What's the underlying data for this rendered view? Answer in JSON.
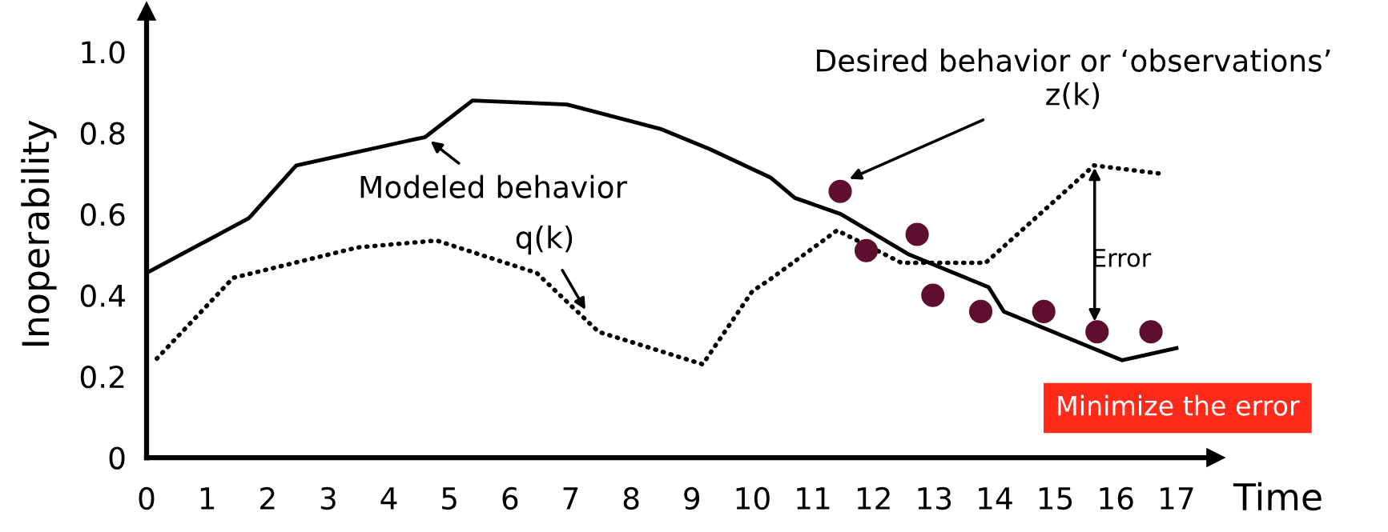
{
  "chart_data": {
    "type": "line",
    "xlabel": "Time",
    "ylabel": "Inoperability",
    "xlim": [
      0,
      17.65
    ],
    "ylim": [
      0,
      1.1
    ],
    "xticks": [
      0,
      1,
      2,
      3,
      4,
      5,
      6,
      7,
      8,
      9,
      10,
      11,
      12,
      13,
      14,
      15,
      16,
      17
    ],
    "yticks": [
      0,
      0.2,
      0.4,
      0.6,
      0.8,
      {
        "value": 1,
        "label": "1.0"
      }
    ],
    "grid": false,
    "legend": false,
    "series": [
      {
        "line_style": "solid",
        "color": "#000000",
        "x": [
          0,
          1.69,
          2.47,
          4.6,
          5.38,
          6.94,
          8.48,
          9.3,
          10.3,
          10.7,
          11.46,
          12.59,
          13.9,
          14.15,
          16.1,
          17.0
        ],
        "values": [
          0.455,
          0.59,
          0.72,
          0.79,
          0.88,
          0.87,
          0.81,
          0.76,
          0.69,
          0.64,
          0.6,
          0.5,
          0.42,
          0.36,
          0.24,
          0.27
        ]
      },
      {
        "line_style": "dotted",
        "color": "#000000",
        "x": [
          0.17,
          1.43,
          3.49,
          4.79,
          6.44,
          7.46,
          9.18,
          10.0,
          10.3,
          11.4,
          12.46,
          13.85,
          15.64,
          16.72
        ],
        "values": [
          0.244,
          0.443,
          0.518,
          0.535,
          0.455,
          0.31,
          0.23,
          0.41,
          0.44,
          0.56,
          0.48,
          0.48,
          0.72,
          0.7
        ]
      },
      {
        "type": "scatter",
        "marker": "circle",
        "color": "#5e0f2e",
        "x": [
          11.45,
          11.88,
          12.72,
          12.98,
          13.77,
          14.81,
          15.69,
          16.58
        ],
        "values": [
          0.656,
          0.51,
          0.55,
          0.4,
          0.36,
          0.36,
          0.31,
          0.31
        ]
      }
    ],
    "annotations": [
      {
        "text": "Modeled behavior",
        "x": 4.6,
        "y": 0.79
      },
      {
        "text": "q(k)",
        "x": 7.3,
        "y": 0.35
      },
      {
        "text": "Desired behavior or ‘observations’\nz(k)",
        "x": 11.5,
        "y": 0.68
      },
      {
        "text": "Error",
        "x": 15.65,
        "y": 0.33
      },
      "Minimize the error"
    ]
  }
}
